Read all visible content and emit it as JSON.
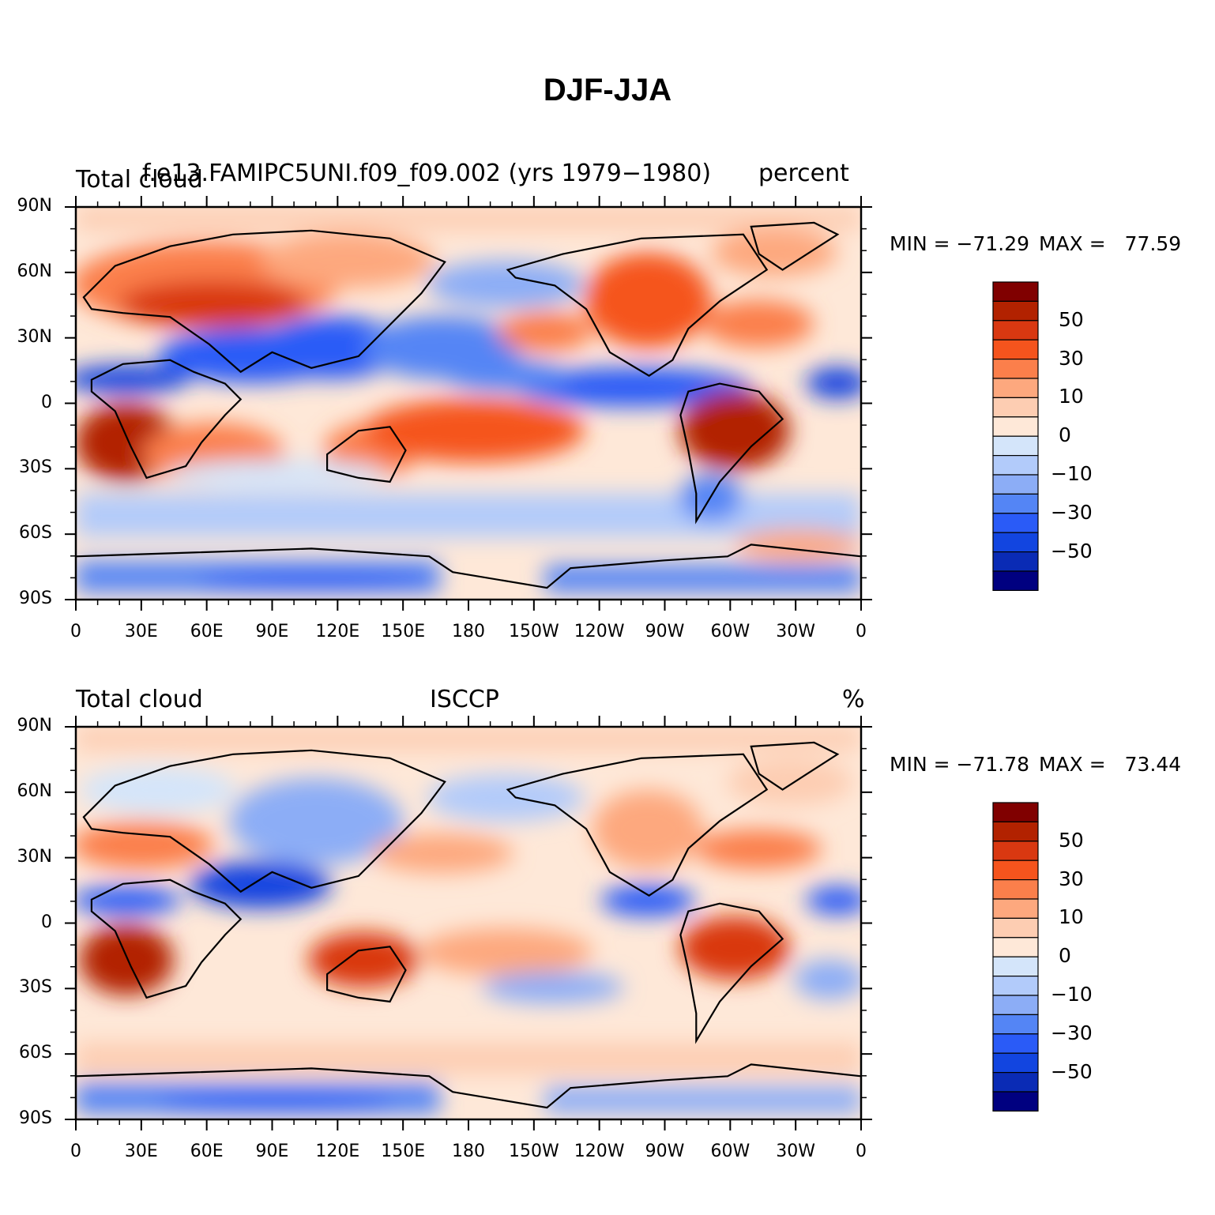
{
  "title": "DJF-JJA",
  "panels": [
    {
      "left_label": "Total cloud",
      "center_label": "f.e13.FAMIPC5UNI.f09_f09.002 (yrs 1979−1980)",
      "right_label": "percent",
      "min_label": "MIN =",
      "min_value": "−71.29",
      "max_label": "MAX =",
      "max_value": "77.59"
    },
    {
      "left_label": "Total cloud",
      "center_label": "ISCCP",
      "right_label": "%",
      "min_label": "MIN =",
      "min_value": "−71.78",
      "max_label": "MAX =",
      "max_value": "73.44"
    }
  ],
  "lat_ticks": [
    "90N",
    "60N",
    "30N",
    "0",
    "30S",
    "60S",
    "90S"
  ],
  "lon_ticks": [
    "0",
    "30E",
    "60E",
    "90E",
    "120E",
    "150E",
    "180",
    "150W",
    "120W",
    "90W",
    "60W",
    "30W",
    "0"
  ],
  "colorbar": {
    "labels": [
      "50",
      "30",
      "10",
      "0",
      "−10",
      "−30",
      "−50"
    ],
    "colors": [
      "#800000",
      "#b22200",
      "#d93811",
      "#f5541d",
      "#fb7f4b",
      "#fda87e",
      "#fdcdb2",
      "#fee8d8",
      "#d4e5fa",
      "#b2cbfa",
      "#8cadf6",
      "#5485f5",
      "#2a5bf7",
      "#1245e0",
      "#0a2bb5",
      "#000080"
    ]
  }
}
